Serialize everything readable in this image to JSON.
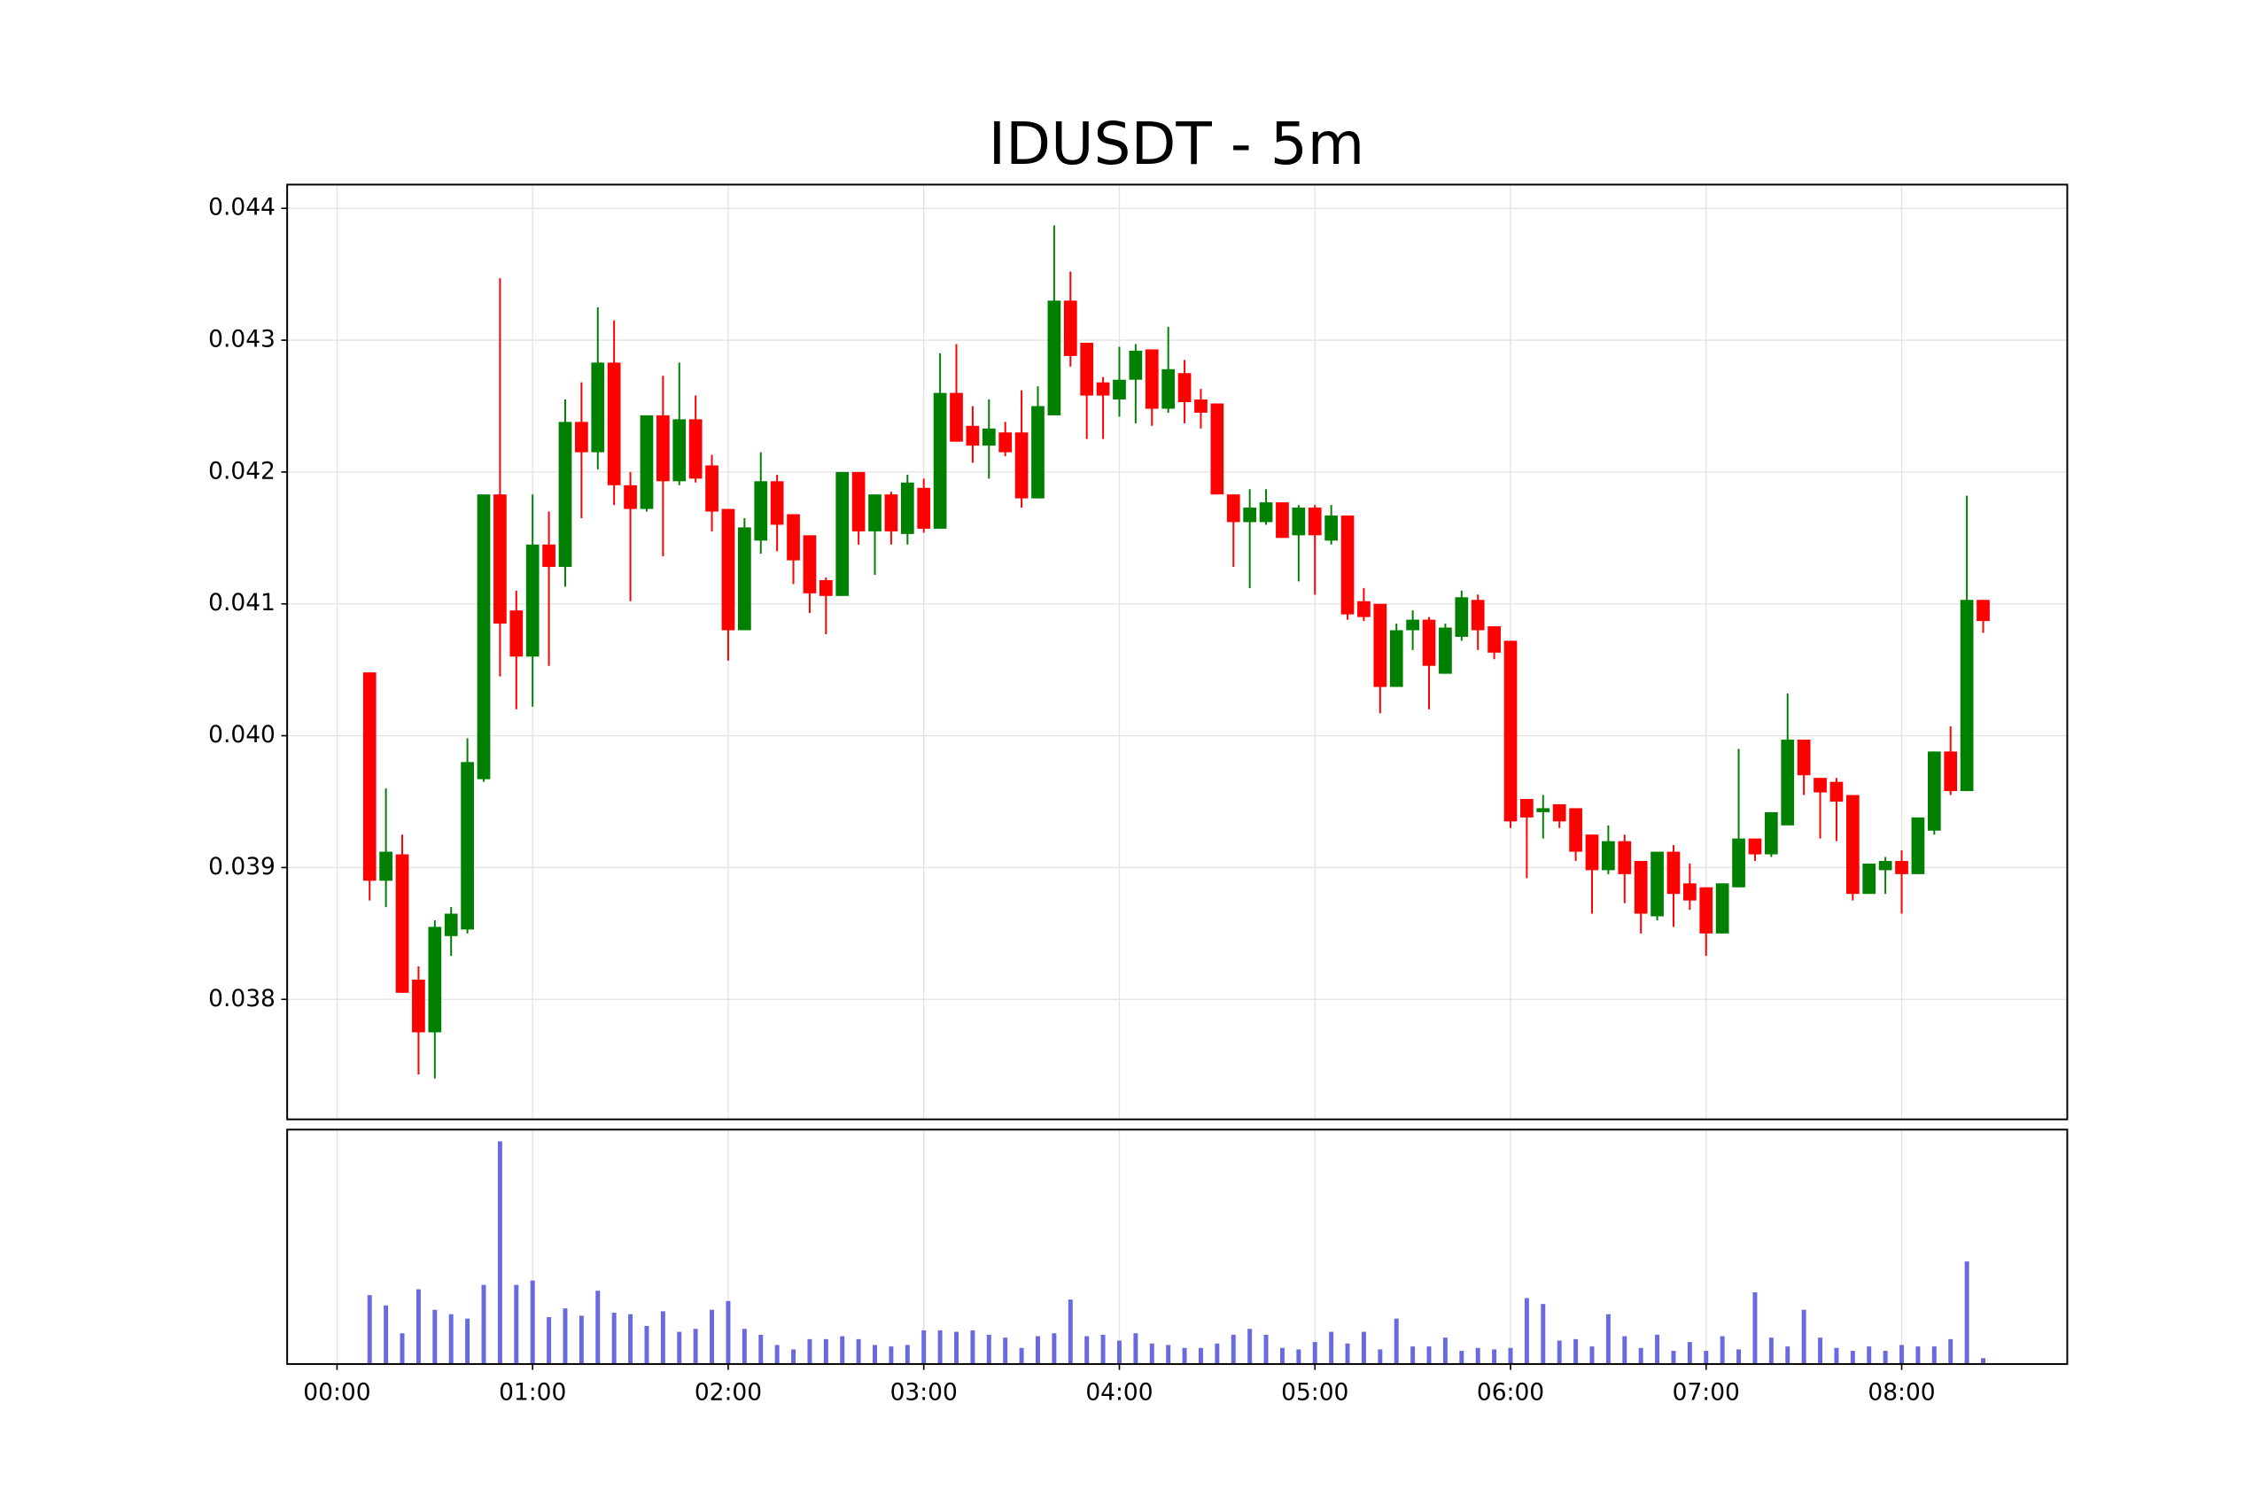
{
  "chart_data": {
    "type": "candlestick",
    "title": "IDUSDT - 5m",
    "x": [
      10,
      15,
      20,
      25,
      30,
      35,
      40,
      45,
      50,
      55,
      60,
      65,
      70,
      75,
      80,
      85,
      90,
      95,
      100,
      105,
      110,
      115,
      120,
      125,
      130,
      135,
      140,
      145,
      150,
      155,
      160,
      165,
      170,
      175,
      180,
      185,
      190,
      195,
      200,
      205,
      210,
      215,
      220,
      225,
      230,
      235,
      240,
      245,
      250,
      255,
      260,
      265,
      270,
      275,
      280,
      285,
      290,
      295,
      300,
      305,
      310,
      315,
      320,
      325,
      330,
      335,
      340,
      345,
      350,
      355,
      360,
      365,
      370,
      375,
      380,
      385,
      390,
      395,
      400,
      405,
      410,
      415,
      420,
      425,
      430,
      435,
      440,
      445,
      450,
      455,
      460,
      465,
      470,
      475,
      480,
      485,
      490,
      495,
      500,
      505
    ],
    "open": [
      0.04048,
      0.0389,
      0.0391,
      0.03815,
      0.03775,
      0.03848,
      0.03853,
      0.03967,
      0.04183,
      0.04095,
      0.0406,
      0.04145,
      0.04128,
      0.04238,
      0.04215,
      0.04283,
      0.0419,
      0.04172,
      0.04243,
      0.04193,
      0.0424,
      0.04205,
      0.04172,
      0.0408,
      0.04148,
      0.04193,
      0.04168,
      0.04152,
      0.04118,
      0.04106,
      0.042,
      0.04155,
      0.04183,
      0.04153,
      0.04188,
      0.04157,
      0.0426,
      0.04235,
      0.0422,
      0.0423,
      0.0423,
      0.0418,
      0.04243,
      0.0433,
      0.04298,
      0.04268,
      0.04255,
      0.0427,
      0.04293,
      0.04248,
      0.04275,
      0.04255,
      0.04252,
      0.04183,
      0.04162,
      0.04162,
      0.04177,
      0.04152,
      0.04173,
      0.04148,
      0.04167,
      0.04102,
      0.041,
      0.04037,
      0.0408,
      0.04088,
      0.04047,
      0.04075,
      0.04103,
      0.04083,
      0.04072,
      0.03952,
      0.03942,
      0.03948,
      0.03945,
      0.03925,
      0.03898,
      0.0392,
      0.03905,
      0.03863,
      0.03912,
      0.03888,
      0.03885,
      0.0385,
      0.03885,
      0.03922,
      0.0391,
      0.03932,
      0.03997,
      0.03968,
      0.03965,
      0.03955,
      0.0388,
      0.03898,
      0.03905,
      0.03895,
      0.03928,
      0.03988,
      0.03958,
      0.04103
    ],
    "high": [
      0.04048,
      0.0396,
      0.03925,
      0.03825,
      0.0386,
      0.0387,
      0.03998,
      0.04183,
      0.04347,
      0.0411,
      0.04183,
      0.0417,
      0.04255,
      0.04268,
      0.04325,
      0.04315,
      0.042,
      0.04243,
      0.04273,
      0.04283,
      0.04258,
      0.04213,
      0.04172,
      0.04165,
      0.04215,
      0.04198,
      0.04168,
      0.04152,
      0.0412,
      0.042,
      0.042,
      0.04183,
      0.04185,
      0.04198,
      0.04195,
      0.0429,
      0.04297,
      0.0425,
      0.04255,
      0.04238,
      0.04262,
      0.04265,
      0.04387,
      0.04352,
      0.04298,
      0.04272,
      0.04295,
      0.04297,
      0.04293,
      0.0431,
      0.04285,
      0.04263,
      0.04252,
      0.04183,
      0.04187,
      0.04187,
      0.04177,
      0.04175,
      0.04175,
      0.04175,
      0.04167,
      0.04112,
      0.041,
      0.04085,
      0.04095,
      0.0409,
      0.04085,
      0.0411,
      0.04107,
      0.04083,
      0.04072,
      0.03952,
      0.03955,
      0.03948,
      0.03945,
      0.03925,
      0.03932,
      0.03925,
      0.03905,
      0.03912,
      0.03917,
      0.03903,
      0.03885,
      0.03888,
      0.0399,
      0.03922,
      0.03942,
      0.04032,
      0.03997,
      0.03968,
      0.03968,
      0.03955,
      0.03903,
      0.03908,
      0.03913,
      0.03938,
      0.03988,
      0.04007,
      0.04182,
      0.04103
    ],
    "low": [
      0.03875,
      0.0387,
      0.03805,
      0.03743,
      0.0374,
      0.03833,
      0.0385,
      0.03965,
      0.04045,
      0.0402,
      0.04022,
      0.04053,
      0.04113,
      0.04165,
      0.04202,
      0.04175,
      0.04102,
      0.0417,
      0.04136,
      0.0419,
      0.04192,
      0.04155,
      0.04057,
      0.0408,
      0.04138,
      0.0414,
      0.04115,
      0.04093,
      0.04077,
      0.04106,
      0.04145,
      0.04122,
      0.04145,
      0.04145,
      0.04154,
      0.04157,
      0.04223,
      0.04207,
      0.04195,
      0.04212,
      0.04173,
      0.0418,
      0.04243,
      0.0428,
      0.04225,
      0.04225,
      0.04242,
      0.04237,
      0.04235,
      0.04245,
      0.04237,
      0.04233,
      0.04183,
      0.04128,
      0.04112,
      0.0416,
      0.0415,
      0.04117,
      0.04107,
      0.04145,
      0.04088,
      0.04087,
      0.04017,
      0.04037,
      0.04065,
      0.0402,
      0.04047,
      0.04072,
      0.04065,
      0.04058,
      0.0393,
      0.03892,
      0.03922,
      0.0393,
      0.03905,
      0.03865,
      0.03895,
      0.03873,
      0.0385,
      0.0386,
      0.03855,
      0.03868,
      0.03833,
      0.0385,
      0.03885,
      0.03905,
      0.03908,
      0.03932,
      0.03955,
      0.03922,
      0.0392,
      0.03875,
      0.0388,
      0.0388,
      0.03865,
      0.03895,
      0.03925,
      0.03955,
      0.03958,
      0.04078
    ],
    "close": [
      0.0389,
      0.03912,
      0.03805,
      0.03775,
      0.03855,
      0.03865,
      0.0398,
      0.04183,
      0.04085,
      0.0406,
      0.04145,
      0.04128,
      0.04238,
      0.04215,
      0.04283,
      0.0419,
      0.04172,
      0.04243,
      0.04193,
      0.0424,
      0.04195,
      0.0417,
      0.0408,
      0.04158,
      0.04193,
      0.0416,
      0.04133,
      0.04108,
      0.04106,
      0.042,
      0.04155,
      0.04183,
      0.04155,
      0.04192,
      0.04157,
      0.0426,
      0.04223,
      0.0422,
      0.04233,
      0.04215,
      0.0418,
      0.0425,
      0.0433,
      0.04288,
      0.04258,
      0.04258,
      0.0427,
      0.04292,
      0.04248,
      0.04278,
      0.04253,
      0.04245,
      0.04183,
      0.04162,
      0.04173,
      0.04177,
      0.0415,
      0.04173,
      0.04152,
      0.04167,
      0.04092,
      0.0409,
      0.04037,
      0.0408,
      0.04088,
      0.04053,
      0.04082,
      0.04105,
      0.0408,
      0.04063,
      0.03935,
      0.03938,
      0.03945,
      0.03935,
      0.03912,
      0.03898,
      0.0392,
      0.03895,
      0.03865,
      0.03912,
      0.0388,
      0.03875,
      0.0385,
      0.03888,
      0.03922,
      0.0391,
      0.03942,
      0.03997,
      0.0397,
      0.03957,
      0.0395,
      0.0388,
      0.03903,
      0.03905,
      0.03895,
      0.03938,
      0.03988,
      0.03958,
      0.04103,
      0.04087
    ],
    "up_color": "green",
    "down_color": "red",
    "xlim": [
      -15.3,
      530.8
    ],
    "xticks": [
      {
        "value": 0,
        "label": "00:00"
      },
      {
        "value": 60,
        "label": "01:00"
      },
      {
        "value": 120,
        "label": "02:00"
      },
      {
        "value": 180,
        "label": "03:00"
      },
      {
        "value": 240,
        "label": "04:00"
      },
      {
        "value": 300,
        "label": "05:00"
      },
      {
        "value": 360,
        "label": "06:00"
      },
      {
        "value": 420,
        "label": "07:00"
      },
      {
        "value": 480,
        "label": "08:00"
      }
    ],
    "ylim": [
      0.03709,
      0.04418
    ],
    "yticks": [
      0.038,
      0.039,
      {
        "value": 0.04,
        "label": "0.040"
      },
      0.041,
      0.042,
      0.043,
      0.044
    ],
    "grid": true,
    "volume": {
      "color": "#6a6ae0",
      "ylim": [
        0,
        160
      ],
      "values": [
        47,
        40,
        21,
        51,
        37,
        34,
        31,
        54,
        152,
        54,
        57,
        32,
        38,
        33,
        50,
        35,
        34,
        26,
        36,
        22,
        24,
        37,
        43,
        24,
        20,
        13,
        10,
        17,
        17,
        19,
        17,
        13,
        12,
        13,
        23,
        23,
        22,
        23,
        20,
        18,
        11,
        19,
        21,
        44,
        19,
        20,
        16,
        21,
        14,
        13,
        11,
        11,
        14,
        20,
        24,
        20,
        11,
        10,
        15,
        22,
        14,
        22,
        10,
        31,
        12,
        12,
        18,
        9,
        11,
        10,
        11,
        45,
        41,
        16,
        17,
        12,
        34,
        19,
        11,
        20,
        9,
        15,
        9,
        19,
        10,
        49,
        18,
        12,
        37,
        18,
        11,
        9,
        12,
        9,
        13,
        12,
        12,
        17,
        70,
        4
      ]
    }
  }
}
